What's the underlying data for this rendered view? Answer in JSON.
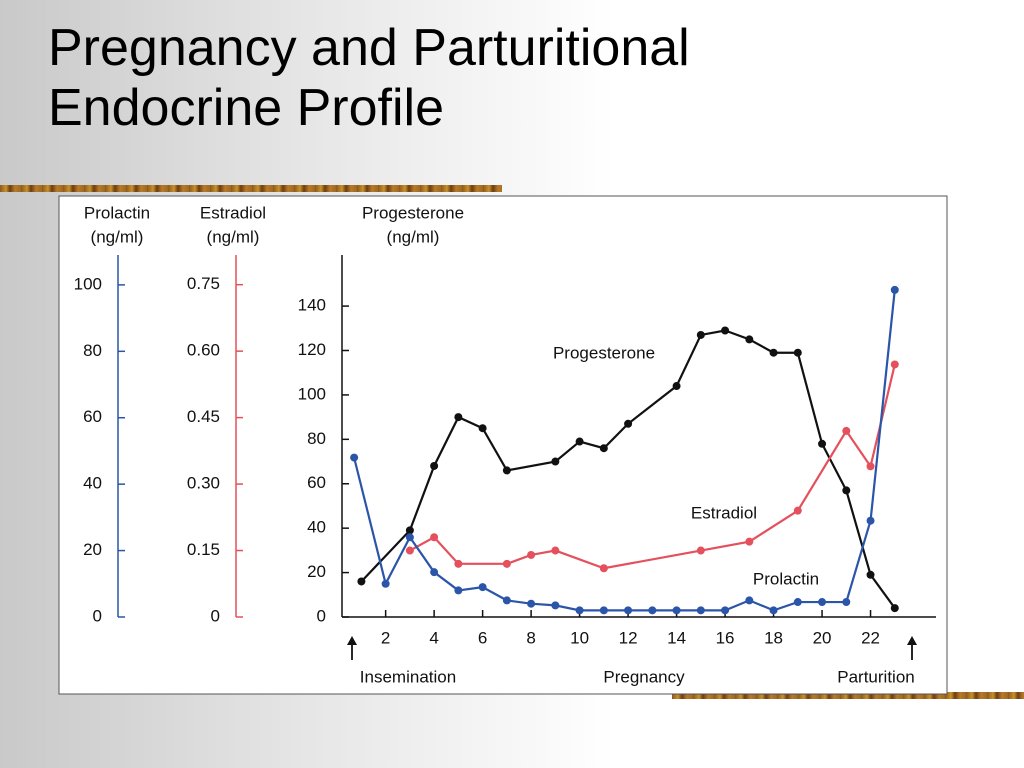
{
  "chart_data": {
    "type": "line",
    "title": "Pregnancy and Parturitional Endocrine Profile",
    "xlim": [
      0.2,
      24.7
    ],
    "xticks": [
      2,
      4,
      6,
      8,
      10,
      12,
      14,
      16,
      18,
      20,
      22
    ],
    "ylim": [
      0,
      163
    ],
    "yticks": [
      0,
      20,
      40,
      60,
      80,
      100,
      120,
      140
    ],
    "y_label": [
      "Progesterone",
      "(ng/ml)"
    ],
    "y2lim": [
      0,
      109
    ],
    "y2ticks": [
      0,
      20,
      40,
      60,
      80,
      100
    ],
    "y2_label": [
      "Prolactin",
      "(ng/ml)"
    ],
    "y3lim": [
      0,
      0.817
    ],
    "y3ticks": [
      0,
      0.15,
      {
        "value": 0.3,
        "label": "0.30"
      },
      0.45,
      {
        "value": 0.6,
        "label": "0.60"
      },
      0.75
    ],
    "y3_label": [
      "Estradiol",
      "(ng/ml)"
    ],
    "x_annotations": [
      "Insemination",
      "Pregnancy",
      "Parturition"
    ],
    "series": [
      {
        "name": "Progesterone",
        "color": "#111111",
        "axis": "y",
        "x": [
          1,
          3,
          4,
          5,
          6,
          7,
          9,
          10,
          11,
          12,
          14,
          15,
          16,
          17,
          18,
          19,
          20,
          21,
          22,
          23
        ],
        "values": [
          16,
          39,
          68,
          90,
          85,
          66,
          70,
          79,
          76,
          87,
          104,
          127,
          129,
          125,
          119,
          119,
          78,
          57,
          19,
          4
        ]
      },
      {
        "name": "Estradiol",
        "color": "#e4505c",
        "axis": "y3",
        "x": [
          3,
          4,
          5,
          7,
          8,
          9,
          11,
          15,
          17,
          19,
          21,
          22,
          23
        ],
        "values": [
          0.15,
          0.18,
          0.12,
          0.12,
          0.14,
          0.15,
          0.11,
          0.15,
          0.17,
          0.24,
          0.42,
          0.34,
          0.57
        ]
      },
      {
        "name": "Prolactin",
        "color": "#2a55a8",
        "axis": "y2",
        "x": [
          0.7,
          2,
          3,
          4,
          5,
          6,
          7,
          8,
          9,
          10,
          11,
          12,
          13,
          14,
          15,
          16,
          17,
          18,
          19,
          20,
          21,
          22,
          23
        ],
        "values": [
          48,
          10,
          24,
          13.5,
          8,
          9,
          5,
          4,
          3.5,
          2,
          2,
          2,
          2,
          2,
          2,
          2,
          5,
          2,
          4.5,
          4.5,
          4.5,
          29,
          98.5
        ]
      }
    ]
  }
}
